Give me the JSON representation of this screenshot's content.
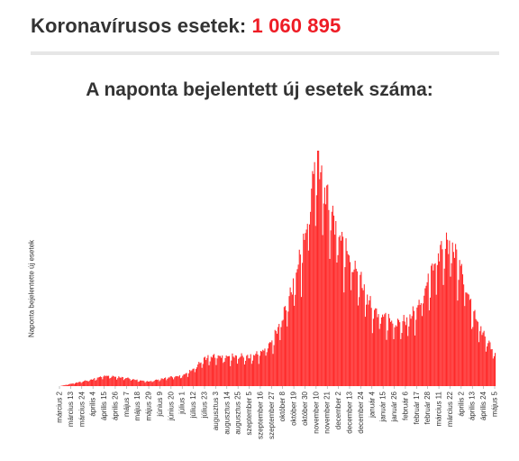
{
  "header": {
    "label": "Koronavírusos esetek:",
    "count": "1 060 895"
  },
  "colors": {
    "accent": "#ee1c25",
    "bar": "#ff2a2a",
    "text": "#333333",
    "divider": "#e6e6e6"
  },
  "chart_data": {
    "type": "bar",
    "title": "A naponta bejelentett új esetek száma:",
    "xlabel": "",
    "ylabel": "Naponta bejelentette új esetek",
    "grid": false,
    "legend": "none",
    "tick_labels": [
      "március 2",
      "március 13",
      "március 24",
      "április 4",
      "április 15",
      "április 26",
      "május 7",
      "május 18",
      "május 29",
      "június 9",
      "június 20",
      "július 1",
      "július 12",
      "július 23",
      "augusztus 3",
      "augusztus 14",
      "augusztus 25",
      "szeptember 5",
      "szeptember 16",
      "szeptember 27",
      "október 8",
      "október 19",
      "október 30",
      "november 10",
      "november 21",
      "december 2",
      "december 13",
      "december 24",
      "január 4",
      "január 15",
      "január 26",
      "február 6",
      "február 17",
      "február 28",
      "március 11",
      "március 22",
      "április 2",
      "április 13",
      "április 24",
      "május 5"
    ],
    "tick_interval_days": 11,
    "trend_keypoints": [
      {
        "x": "március 2",
        "y": 0
      },
      {
        "x": "március 24",
        "y": 0.02
      },
      {
        "x": "április 4",
        "y": 0.03
      },
      {
        "x": "április 15",
        "y": 0.045
      },
      {
        "x": "április 26",
        "y": 0.04
      },
      {
        "x": "május 7",
        "y": 0.035
      },
      {
        "x": "május 18",
        "y": 0.025
      },
      {
        "x": "május 29",
        "y": 0.02
      },
      {
        "x": "június 9",
        "y": 0.03
      },
      {
        "x": "június 20",
        "y": 0.04
      },
      {
        "x": "július 1",
        "y": 0.045
      },
      {
        "x": "július 12",
        "y": 0.075
      },
      {
        "x": "július 23",
        "y": 0.12
      },
      {
        "x": "augusztus 3",
        "y": 0.13
      },
      {
        "x": "augusztus 14",
        "y": 0.125
      },
      {
        "x": "augusztus 25",
        "y": 0.13
      },
      {
        "x": "szeptember 5",
        "y": 0.125
      },
      {
        "x": "szeptember 16",
        "y": 0.145
      },
      {
        "x": "szeptember 27",
        "y": 0.19
      },
      {
        "x": "október 8",
        "y": 0.3
      },
      {
        "x": "október 19",
        "y": 0.45
      },
      {
        "x": "október 30",
        "y": 0.65
      },
      {
        "x": "november 10",
        "y": 1.0
      },
      {
        "x": "november 21",
        "y": 0.8
      },
      {
        "x": "december 2",
        "y": 0.65
      },
      {
        "x": "december 13",
        "y": 0.55
      },
      {
        "x": "december 24",
        "y": 0.45
      },
      {
        "x": "január 4",
        "y": 0.33
      },
      {
        "x": "január 15",
        "y": 0.3
      },
      {
        "x": "január 26",
        "y": 0.27
      },
      {
        "x": "február 6",
        "y": 0.28
      },
      {
        "x": "február 17",
        "y": 0.33
      },
      {
        "x": "február 28",
        "y": 0.45
      },
      {
        "x": "március 11",
        "y": 0.58
      },
      {
        "x": "március 22",
        "y": 0.62
      },
      {
        "x": "április 2",
        "y": 0.5
      },
      {
        "x": "április 13",
        "y": 0.32
      },
      {
        "x": "április 24",
        "y": 0.22
      },
      {
        "x": "május 5",
        "y": 0.14
      }
    ]
  }
}
